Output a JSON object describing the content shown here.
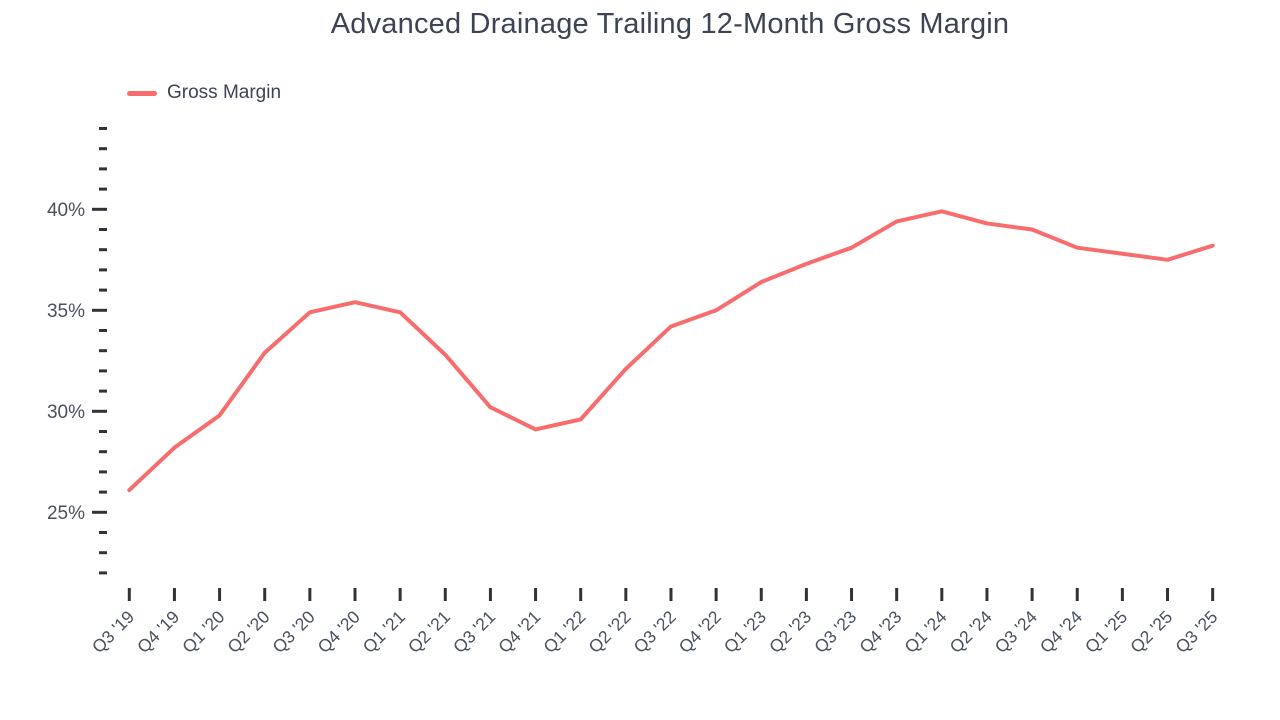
{
  "chart": {
    "title": "Advanced Drainage Trailing 12-Month Gross Margin",
    "legend": [
      "Gross Margin"
    ]
  },
  "chart_data": {
    "type": "line",
    "title": "Advanced Drainage Trailing 12-Month Gross Margin",
    "xlabel": "",
    "ylabel": "",
    "legend_position": "top-left",
    "grid": false,
    "categories": [
      "Q3 '19",
      "Q4 '19",
      "Q1 '20",
      "Q2 '20",
      "Q3 '20",
      "Q4 '20",
      "Q1 '21",
      "Q2 '21",
      "Q3 '21",
      "Q4 '21",
      "Q1 '22",
      "Q2 '22",
      "Q3 '22",
      "Q4 '22",
      "Q1 '23",
      "Q2 '23",
      "Q3 '23",
      "Q4 '23",
      "Q1 '24",
      "Q2 '24",
      "Q3 '24",
      "Q4 '24",
      "Q1 '25",
      "Q2 '25",
      "Q3 '25"
    ],
    "series": [
      {
        "name": "Gross Margin",
        "color": "#F76D6D",
        "values": [
          26.1,
          28.2,
          29.8,
          32.9,
          34.9,
          35.4,
          34.9,
          32.8,
          30.2,
          29.1,
          29.6,
          32.1,
          34.2,
          35.0,
          36.4,
          37.3,
          38.1,
          39.4,
          39.9,
          39.3,
          39.0,
          38.1,
          37.8,
          37.5,
          38.2
        ]
      }
    ],
    "y_axis": {
      "unit": "%",
      "tick_min": 22,
      "tick_max": 44,
      "minor_tick_step": 1,
      "major_tick_step": 5,
      "major_tick_values": [
        25,
        30,
        35,
        40
      ],
      "major_tick_labels": [
        "25%",
        "30%",
        "35%",
        "40%"
      ]
    },
    "colors": {
      "tick_color": "#2F3439",
      "axis_label_color": "#49505E",
      "title_color": "#3C4454",
      "background": "#FFFFFF"
    }
  }
}
